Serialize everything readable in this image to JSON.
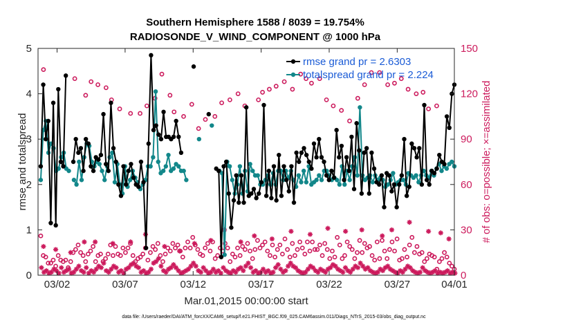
{
  "colors": {
    "rmse": "#000000",
    "spread": "#12878a",
    "obs": "#cc1a5c",
    "legend_text": "#1a5bd6"
  },
  "chart_data": {
    "type": "line",
    "title": "Southern Hemisphere 1588 / 8039 = 19.754%",
    "subtitle": "RADIOSONDE_V_WIND_COMPONENT @ 1000 hPa",
    "xlabel": "Mar.01,2015 00:00:00 start",
    "ylabel": "rmse and totalspread",
    "y2label": "# of obs: o=possible; ×=assimilated",
    "xlim": [
      0.6,
      31.2
    ],
    "ylim": [
      0,
      5
    ],
    "y2lim": [
      0,
      150
    ],
    "x_ticks": [
      {
        "x": 2,
        "label": "03/02"
      },
      {
        "x": 7,
        "label": "03/07"
      },
      {
        "x": 12,
        "label": "03/12"
      },
      {
        "x": 17,
        "label": "03/17"
      },
      {
        "x": 22,
        "label": "03/22"
      },
      {
        "x": 27,
        "label": "03/27"
      },
      {
        "x": 32,
        "label": "04/01"
      }
    ],
    "y_ticks": [
      "0",
      "1",
      "2",
      "3",
      "4",
      "5"
    ],
    "y2_ticks": [
      "0",
      "30",
      "60",
      "90",
      "120",
      "150"
    ],
    "legend": [
      "rmse grand pr = 2.6303",
      "totalspread grand pr = 2.224"
    ],
    "rmse": [
      2.4,
      4.2,
      3.0,
      3.4,
      1.15,
      3.8,
      1.1,
      4.1,
      2.5,
      2.4,
      4.4,
      null,
      null,
      2.5,
      3.0,
      2.7,
      2.8,
      2.3,
      3.0,
      2.9,
      2.4,
      2.3,
      2.6,
      2.55,
      2.65,
      3.55,
      2.45,
      2.3,
      3.8,
      2.8,
      2.5,
      2.0,
      1.75,
      2.4,
      2.0,
      2.3,
      2.45,
      2.15,
      2.0,
      1.95,
      2.5,
      2.05,
      0.6,
      2.9,
      4.85,
      3.2,
      3.3,
      3.1,
      3.0,
      3.6,
      3.05,
      3.05,
      3.0,
      3.05,
      3.4,
      3.05,
      2.7,
      null,
      null,
      null,
      null,
      4.6,
      null,
      null,
      null,
      null,
      null,
      3.55,
      null,
      null,
      2.35,
      2.3,
      0.4,
      2.4,
      2.5,
      1.8,
      1.05,
      1.65,
      2.2,
      1.6,
      2.2,
      1.6,
      3.7,
      1.75,
      1.8,
      1.9,
      1.7,
      1.8,
      2.05,
      3.75,
      1.75,
      2.3,
      1.7,
      2.4,
      1.65,
      2.65,
      1.75,
      2.4,
      2.1,
      1.85,
      2.4,
      1.6,
      2.7,
      2.5,
      2.7,
      2.8,
      2.65,
      2.5,
      2.35,
      2.9,
      2.6,
      3.0,
      2.6,
      2.5,
      2.2,
      2.1,
      2.3,
      2.15,
      3.2,
      2.6,
      2.85,
      2.1,
      2.6,
      2.3,
      3.05,
      1.9,
      3.35,
      2.75,
      1.8,
      2.7,
      2.8,
      1.8,
      2.7,
      2.35,
      2.05,
      2.0,
      2.2,
      1.5,
      2.25,
      2.2,
      1.85,
      2.0,
      1.5,
      2.0,
      2.2,
      3.0,
      1.75,
      1.95,
      2.9,
      2.8,
      2.6,
      2.8,
      2.0,
      3.75,
      2.1,
      2.0,
      2.3,
      2.25,
      2.35,
      2.65,
      2.5,
      2.45,
      3.5,
      3.25,
      4.0,
      4.2
    ],
    "spread": [
      2.1,
      3.2,
      3.4,
      2.7,
      2.9,
      2.8,
      2.3,
      2.35,
      2.6,
      2.7,
      2.35,
      2.3,
      null,
      2.1,
      2.0,
      2.5,
      2.1,
      2.6,
      2.9,
      2.85,
      2.5,
      2.4,
      2.5,
      2.45,
      2.3,
      2.1,
      2.4,
      2.6,
      2.7,
      2.05,
      2.45,
      2.0,
      1.8,
      2.4,
      1.95,
      2.1,
      2.3,
      2.15,
      2.05,
      1.9,
      2.0,
      2.1,
      2.4,
      2.4,
      2.6,
      4.05,
      2.5,
      2.25,
      2.3,
      2.4,
      2.65,
      2.3,
      2.35,
      2.45,
      2.4,
      2.3,
      2.3,
      2.1,
      null,
      null,
      null,
      null,
      3.0,
      null,
      null,
      null,
      null,
      3.3,
      null,
      null,
      2.3,
      2.25,
      0.45,
      2.5,
      2.4,
      2.1,
      1.8,
      2.0,
      2.4,
      1.8,
      2.3,
      1.85,
      2.45,
      2.3,
      2.2,
      2.2,
      2.0,
      2.0,
      2.1,
      2.2,
      2.0,
      2.25,
      2.0,
      2.3,
      2.3,
      2.1,
      2.3,
      2.15,
      2.3,
      2.1,
      1.95,
      2.2,
      2.05,
      2.3,
      2.05,
      2.4,
      2.0,
      2.05,
      2.1,
      2.2,
      2.1,
      2.3,
      2.3,
      2.2,
      2.1,
      2.15,
      2.1,
      2.0,
      2.4,
      2.0,
      2.3,
      2.1,
      2.4,
      2.6,
      2.2,
      3.7,
      2.2,
      2.1,
      2.15,
      2.2,
      2.05,
      2.2,
      2.1,
      2.15,
      2.1,
      1.95,
      2.0,
      2.1,
      2.25,
      2.0,
      2.05,
      2.1,
      2.1,
      2.0,
      2.25,
      2.2,
      2.15,
      2.2,
      2.05,
      2.2,
      2.3,
      2.2,
      2.15,
      2.3,
      2.2,
      2.35,
      2.45,
      2.3,
      2.4,
      2.35,
      2.45,
      2.5,
      2.4
    ],
    "possible": [
      26,
      13,
      12,
      8,
      8,
      10,
      6,
      13,
      10,
      9,
      10,
      5,
      9,
      15,
      17,
      20,
      15,
      13,
      9,
      14,
      16,
      19,
      9,
      13,
      14,
      9,
      11,
      14,
      20,
      13,
      19,
      14,
      13,
      18,
      15,
      18,
      21,
      13,
      9,
      11,
      12,
      14,
      18,
      10,
      15,
      19,
      17,
      21,
      13,
      9,
      14,
      18,
      16,
      21,
      18,
      20,
      16,
      12,
      18,
      22,
      18,
      25,
      20,
      17,
      14,
      13,
      18,
      21,
      16,
      22,
      11,
      13,
      18,
      16,
      21,
      18,
      9,
      14,
      12,
      18,
      13,
      19,
      17,
      21,
      16,
      11,
      17,
      23,
      18,
      20,
      22,
      16,
      13,
      20,
      12,
      17,
      20,
      14,
      24,
      17,
      12,
      21,
      13,
      17,
      22,
      18,
      14,
      22,
      16,
      22,
      17,
      17,
      20,
      13,
      21,
      17,
      11,
      16,
      12,
      25,
      20,
      11,
      13,
      22,
      19,
      17,
      11,
      15,
      23,
      15,
      21,
      18,
      19,
      13,
      10,
      22,
      11,
      23,
      16,
      11,
      17,
      22,
      16,
      24,
      10,
      11,
      17,
      12,
      20,
      25,
      15,
      19,
      14,
      15,
      9,
      11,
      14,
      13,
      12,
      4,
      9,
      11,
      15,
      12,
      8,
      6,
      4
    ],
    "possible_top": [
      {
        "x": 1.0,
        "v": 136
      },
      {
        "x": 3.3,
        "v": 130
      },
      {
        "x": 4.1,
        "v": 119
      },
      {
        "x": 4.5,
        "v": 128
      },
      {
        "x": 5.0,
        "v": 126
      },
      {
        "x": 5.6,
        "v": 124
      },
      {
        "x": 6.0,
        "v": 116
      },
      {
        "x": 6.6,
        "v": 110
      },
      {
        "x": 7.4,
        "v": 107
      },
      {
        "x": 8.1,
        "v": 107
      },
      {
        "x": 8.6,
        "v": 112
      },
      {
        "x": 9.2,
        "v": 117
      },
      {
        "x": 9.7,
        "v": 133
      },
      {
        "x": 10.3,
        "v": 119
      },
      {
        "x": 10.6,
        "v": 108
      },
      {
        "x": 11.3,
        "v": 105
      },
      {
        "x": 11.9,
        "v": 113
      },
      {
        "x": 12.4,
        "v": 97
      },
      {
        "x": 12.9,
        "v": 103
      },
      {
        "x": 13.6,
        "v": 105
      },
      {
        "x": 14.1,
        "v": 114
      },
      {
        "x": 14.7,
        "v": 116
      },
      {
        "x": 15.3,
        "v": 120
      },
      {
        "x": 15.8,
        "v": 112
      },
      {
        "x": 16.8,
        "v": 116
      },
      {
        "x": 17.1,
        "v": 121
      },
      {
        "x": 17.6,
        "v": 123
      },
      {
        "x": 18.1,
        "v": 125
      },
      {
        "x": 18.7,
        "v": 128
      },
      {
        "x": 19.3,
        "v": 123
      },
      {
        "x": 19.9,
        "v": 133
      },
      {
        "x": 20.3,
        "v": 130
      },
      {
        "x": 20.7,
        "v": 127
      },
      {
        "x": 21.3,
        "v": 130
      },
      {
        "x": 21.8,
        "v": 116
      },
      {
        "x": 22.3,
        "v": 112
      },
      {
        "x": 22.9,
        "v": 109
      },
      {
        "x": 23.5,
        "v": 102
      },
      {
        "x": 24.1,
        "v": 117
      },
      {
        "x": 24.6,
        "v": 126
      },
      {
        "x": 25.1,
        "v": 134
      },
      {
        "x": 25.7,
        "v": 134
      },
      {
        "x": 26.3,
        "v": 126
      },
      {
        "x": 26.8,
        "v": 127
      },
      {
        "x": 27.3,
        "v": 130
      },
      {
        "x": 27.8,
        "v": 123
      },
      {
        "x": 28.4,
        "v": 120
      },
      {
        "x": 28.9,
        "v": 121
      },
      {
        "x": 29.3,
        "v": 110
      },
      {
        "x": 29.9,
        "v": 112
      }
    ],
    "assimilated": [
      5,
      2,
      3,
      1,
      2,
      4,
      3,
      1,
      5,
      2,
      3,
      4,
      1,
      2,
      4,
      6,
      3,
      2,
      5,
      1,
      3,
      2,
      4,
      6,
      5,
      8,
      3,
      2,
      4,
      6,
      5,
      2,
      3,
      1,
      4,
      5,
      7,
      8,
      6,
      5,
      2,
      3,
      1,
      2,
      4,
      8,
      9,
      11,
      6,
      3,
      2,
      4,
      5,
      7,
      5,
      3,
      1,
      2,
      3,
      4,
      6,
      8,
      6,
      3,
      2,
      5,
      3,
      1,
      2,
      4,
      2,
      3,
      1,
      5,
      3,
      2,
      1,
      3,
      2,
      4,
      5,
      3,
      6,
      8,
      5,
      2,
      3,
      1,
      2,
      4,
      2,
      3,
      1,
      2,
      5,
      7,
      4,
      2,
      3,
      6,
      8,
      6,
      5,
      3,
      2,
      1,
      2,
      4,
      6,
      5,
      3,
      2,
      4,
      3,
      2,
      4,
      5,
      7,
      6,
      4,
      3,
      2,
      5,
      3,
      2,
      4,
      6,
      5,
      8,
      6,
      4,
      5,
      3,
      2,
      1,
      2,
      4,
      3,
      5,
      6,
      4,
      3,
      2,
      1,
      3,
      2,
      4,
      6,
      5,
      3,
      2,
      1,
      2,
      5,
      3,
      2,
      1,
      2,
      3,
      1,
      2,
      1,
      2,
      3,
      1,
      2,
      1
    ],
    "assimilated_top": [
      {
        "x": 1.0,
        "v": 19
      },
      {
        "x": 1.9,
        "v": 17
      },
      {
        "x": 3.0,
        "v": 15
      },
      {
        "x": 4.0,
        "v": 22
      },
      {
        "x": 4.8,
        "v": 22
      },
      {
        "x": 6.1,
        "v": 21
      },
      {
        "x": 7.4,
        "v": 22
      },
      {
        "x": 8.5,
        "v": 27
      },
      {
        "x": 9.9,
        "v": 19
      },
      {
        "x": 11.0,
        "v": 16
      },
      {
        "x": 12.1,
        "v": 21
      },
      {
        "x": 13.3,
        "v": 23
      },
      {
        "x": 14.3,
        "v": 30
      },
      {
        "x": 15.5,
        "v": 22
      },
      {
        "x": 16.5,
        "v": 26
      },
      {
        "x": 17.8,
        "v": 24
      },
      {
        "x": 19.2,
        "v": 29
      },
      {
        "x": 20.6,
        "v": 27
      },
      {
        "x": 21.9,
        "v": 31
      },
      {
        "x": 23.2,
        "v": 29
      },
      {
        "x": 24.4,
        "v": 30
      },
      {
        "x": 25.9,
        "v": 26
      },
      {
        "x": 26.6,
        "v": 30
      },
      {
        "x": 27.9,
        "v": 35
      },
      {
        "x": 29.3,
        "v": 29
      },
      {
        "x": 30.2,
        "v": 28
      },
      {
        "x": 30.8,
        "v": 24
      }
    ]
  },
  "footer": "data file: /Users/raeder/DAI/ATM_forcXX/CAM6_setup/f.e21.FHIST_BGC.f09_025.CAM6assim.011/Diags_NTrS_2015-03/obs_diag_output.nc"
}
